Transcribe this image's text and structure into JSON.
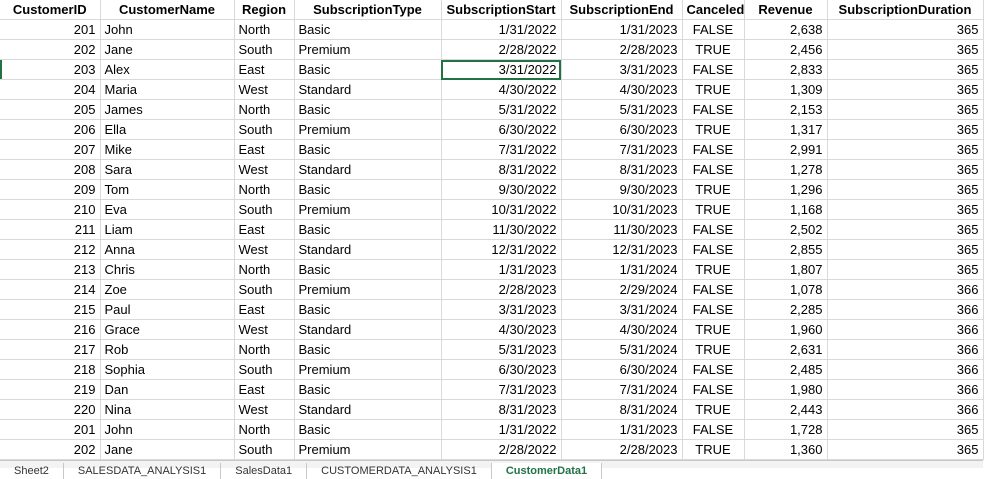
{
  "sheet": {
    "headers": [
      "CustomerID",
      "CustomerName",
      "Region",
      "SubscriptionType",
      "SubscriptionStart",
      "SubscriptionEnd",
      "Canceled",
      "Revenue",
      "SubscriptionDuration"
    ],
    "rows": [
      [
        "201",
        "John",
        "North",
        "Basic",
        "1/31/2022",
        "1/31/2023",
        "FALSE",
        "2,638",
        "365"
      ],
      [
        "202",
        "Jane",
        "South",
        "Premium",
        "2/28/2022",
        "2/28/2023",
        "TRUE",
        "2,456",
        "365"
      ],
      [
        "203",
        "Alex",
        "East",
        "Basic",
        "3/31/2022",
        "3/31/2023",
        "FALSE",
        "2,833",
        "365"
      ],
      [
        "204",
        "Maria",
        "West",
        "Standard",
        "4/30/2022",
        "4/30/2023",
        "TRUE",
        "1,309",
        "365"
      ],
      [
        "205",
        "James",
        "North",
        "Basic",
        "5/31/2022",
        "5/31/2023",
        "FALSE",
        "2,153",
        "365"
      ],
      [
        "206",
        "Ella",
        "South",
        "Premium",
        "6/30/2022",
        "6/30/2023",
        "TRUE",
        "1,317",
        "365"
      ],
      [
        "207",
        "Mike",
        "East",
        "Basic",
        "7/31/2022",
        "7/31/2023",
        "FALSE",
        "2,991",
        "365"
      ],
      [
        "208",
        "Sara",
        "West",
        "Standard",
        "8/31/2022",
        "8/31/2023",
        "FALSE",
        "1,278",
        "365"
      ],
      [
        "209",
        "Tom",
        "North",
        "Basic",
        "9/30/2022",
        "9/30/2023",
        "TRUE",
        "1,296",
        "365"
      ],
      [
        "210",
        "Eva",
        "South",
        "Premium",
        "10/31/2022",
        "10/31/2023",
        "TRUE",
        "1,168",
        "365"
      ],
      [
        "211",
        "Liam",
        "East",
        "Basic",
        "11/30/2022",
        "11/30/2023",
        "FALSE",
        "2,502",
        "365"
      ],
      [
        "212",
        "Anna",
        "West",
        "Standard",
        "12/31/2022",
        "12/31/2023",
        "FALSE",
        "2,855",
        "365"
      ],
      [
        "213",
        "Chris",
        "North",
        "Basic",
        "1/31/2023",
        "1/31/2024",
        "TRUE",
        "1,807",
        "365"
      ],
      [
        "214",
        "Zoe",
        "South",
        "Premium",
        "2/28/2023",
        "2/29/2024",
        "FALSE",
        "1,078",
        "366"
      ],
      [
        "215",
        "Paul",
        "East",
        "Basic",
        "3/31/2023",
        "3/31/2024",
        "FALSE",
        "2,285",
        "366"
      ],
      [
        "216",
        "Grace",
        "West",
        "Standard",
        "4/30/2023",
        "4/30/2024",
        "TRUE",
        "1,960",
        "366"
      ],
      [
        "217",
        "Rob",
        "North",
        "Basic",
        "5/31/2023",
        "5/31/2024",
        "TRUE",
        "2,631",
        "366"
      ],
      [
        "218",
        "Sophia",
        "South",
        "Premium",
        "6/30/2023",
        "6/30/2024",
        "FALSE",
        "2,485",
        "366"
      ],
      [
        "219",
        "Dan",
        "East",
        "Basic",
        "7/31/2023",
        "7/31/2024",
        "FALSE",
        "1,980",
        "366"
      ],
      [
        "220",
        "Nina",
        "West",
        "Standard",
        "8/31/2023",
        "8/31/2024",
        "TRUE",
        "2,443",
        "366"
      ],
      [
        "201",
        "John",
        "North",
        "Basic",
        "1/31/2022",
        "1/31/2023",
        "FALSE",
        "1,728",
        "365"
      ],
      [
        "202",
        "Jane",
        "South",
        "Premium",
        "2/28/2022",
        "2/28/2023",
        "TRUE",
        "1,360",
        "365"
      ]
    ],
    "selected": {
      "row": 2,
      "col": 4
    }
  },
  "tabs": [
    {
      "label": "Sheet2",
      "active": false
    },
    {
      "label": "SALESDATA_ANALYSIS1",
      "active": false
    },
    {
      "label": "SalesData1",
      "active": false
    },
    {
      "label": "CUSTOMERDATA_ANALYSIS1",
      "active": false
    },
    {
      "label": "CustomerData1",
      "active": true
    }
  ]
}
